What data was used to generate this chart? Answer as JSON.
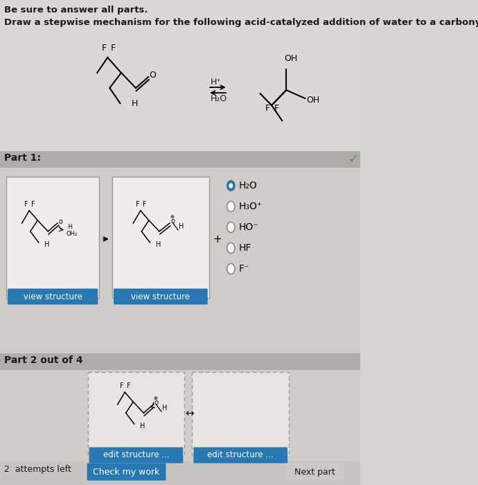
{
  "page_bg": "#d8d4d0",
  "header_bg": "#d8d4d0",
  "part_bar_color": "#b0aca8",
  "content_bg": "#d0ccc8",
  "bottom_bg": "#c8c4c0",
  "title_bold": "Be sure to answer all parts.",
  "subtitle": "Draw a stepwise mechanism for the following acid-catalyzed addition of water to a carbonyl:",
  "part1_label": "Part 1:",
  "part2_label": "Part 2 out of 4",
  "arrow_label_top": "H⁺",
  "arrow_label_bot": "H₂O",
  "radio_options": [
    "H₂O",
    "H₃O⁺",
    "HO⁻",
    "HF",
    "F⁻"
  ],
  "radio_selected": 0,
  "view_btn_color": "#2878b4",
  "view_btn_text": "view structure",
  "edit_btn_color": "#2878b4",
  "edit_btn_text": "edit structure ...",
  "check_btn_color": "#2878b4",
  "check_btn_text": "Check my work",
  "next_btn_text": "Next part",
  "attempts_text": "2  attempts left",
  "plus_sign": "+",
  "doublearrow": "↔",
  "checkmark_color": "#4a9a4a",
  "struct_box_bg": "#f0ece8",
  "struct_box_border": "#999999",
  "dashed_box_bg": "#e8e4e0"
}
